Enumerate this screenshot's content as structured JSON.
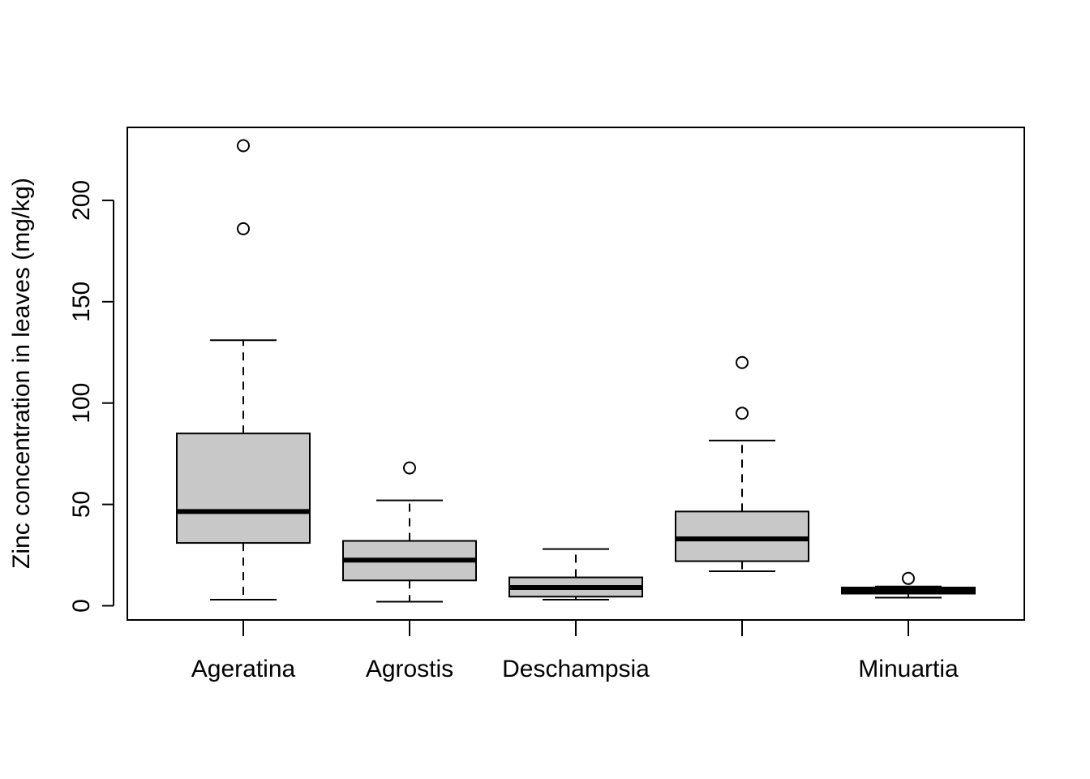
{
  "chart_data": {
    "type": "boxplot",
    "title": "",
    "xlabel": "",
    "ylabel": "Zinc concentration in leaves (mg/kg)",
    "ylim": [
      -7,
      236
    ],
    "yticks": [
      0,
      50,
      100,
      150,
      200
    ],
    "ytick_labels": [
      "0",
      "50",
      "100",
      "150",
      "200"
    ],
    "categories": [
      "Ageratina",
      "Agrostis",
      "Deschampsia",
      "",
      "Minuartia"
    ],
    "box_fill": "#c8c8c8",
    "grid": false,
    "boxes": [
      {
        "label": "Ageratina",
        "whisker_low": 3,
        "q1": 31,
        "median": 46.5,
        "q3": 85,
        "whisker_high": 131,
        "outliers": [
          186,
          227
        ]
      },
      {
        "label": "Agrostis",
        "whisker_low": 2,
        "q1": 12.5,
        "median": 22.5,
        "q3": 32,
        "whisker_high": 52,
        "outliers": [
          68
        ]
      },
      {
        "label": "Deschampsia",
        "whisker_low": 3,
        "q1": 4.5,
        "median": 9,
        "q3": 14,
        "whisker_high": 28,
        "outliers": []
      },
      {
        "label": "",
        "whisker_low": 17,
        "q1": 22,
        "median": 33,
        "q3": 46.5,
        "whisker_high": 81.5,
        "outliers": [
          95,
          120
        ]
      },
      {
        "label": "Minuartia",
        "whisker_low": 4,
        "q1": 6,
        "median": 7.5,
        "q3": 9,
        "whisker_high": 9.5,
        "outliers": [
          13.5
        ]
      }
    ]
  }
}
